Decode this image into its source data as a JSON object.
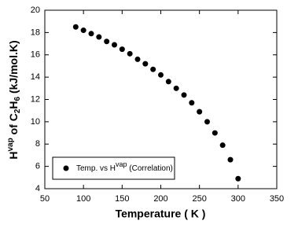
{
  "chart_data": {
    "type": "scatter",
    "x_label": "Temperature ( K )",
    "y_label": [
      "H",
      "vap",
      " of C",
      "2",
      "H",
      "6",
      " (kJ/mol.K)"
    ],
    "x": [
      90,
      100,
      110,
      120,
      130,
      140,
      150,
      160,
      170,
      180,
      190,
      200,
      210,
      220,
      230,
      240,
      250,
      260,
      270,
      280,
      290,
      300
    ],
    "series": [
      {
        "name": [
          "Temp. vs H",
          "vap",
          " (Correlation)"
        ],
        "color": "#000000",
        "values": [
          18.5,
          18.2,
          17.9,
          17.6,
          17.2,
          16.9,
          16.5,
          16.1,
          15.6,
          15.2,
          14.7,
          14.2,
          13.6,
          13.0,
          12.4,
          11.7,
          10.9,
          10.0,
          9.0,
          7.9,
          6.6,
          4.9
        ]
      }
    ],
    "xlim": [
      50,
      350
    ],
    "xticks": [
      50,
      100,
      150,
      200,
      250,
      300,
      350
    ],
    "ylim": [
      4,
      20
    ],
    "yticks": [
      4,
      6,
      8,
      10,
      12,
      14,
      16,
      18,
      20
    ],
    "grid": false,
    "legend": "lower left"
  }
}
